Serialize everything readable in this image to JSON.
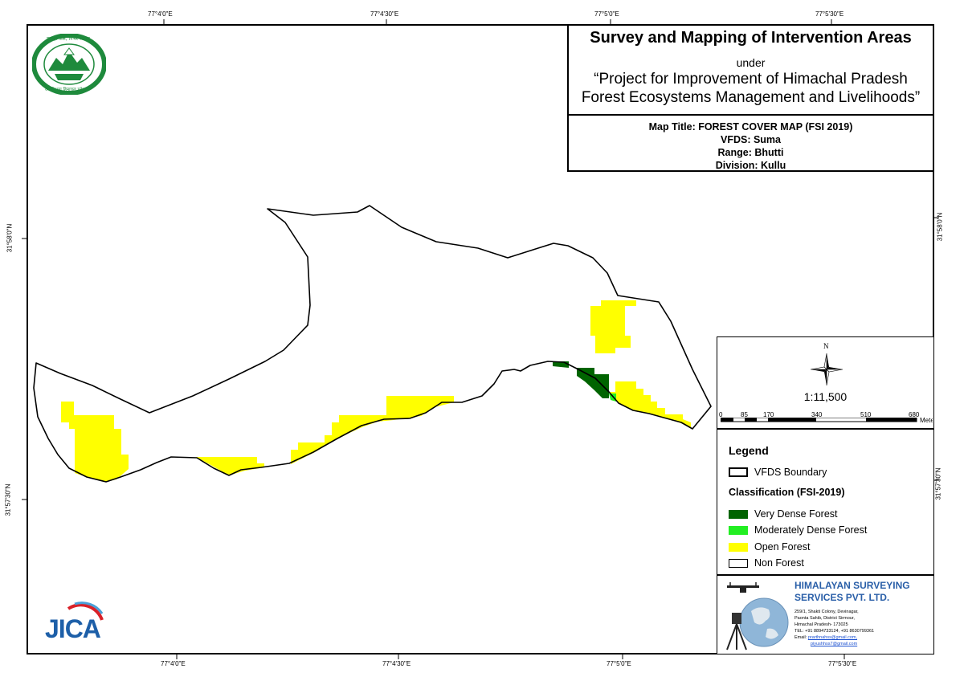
{
  "map_title_block": {
    "main_title": "Survey and Mapping of Intervention Areas",
    "under": "under",
    "project_line1": "“Project for Improvement of Himachal Pradesh",
    "project_line2": "Forest Ecosystems Management and Livelihoods”",
    "map_title": "Map Title: FOREST COVER MAP (FSI 2019)",
    "vfds": "VFDS: Suma",
    "range": "Range: Bhutti",
    "division": "Division: Kullu"
  },
  "coordinates": {
    "top": [
      "77°4'0\"E",
      "77°4'30\"E",
      "77°5'0\"E",
      "77°5'30\"E"
    ],
    "bottom": [
      "77°4'0\"E",
      "77°4'30\"E",
      "77°5'0\"E",
      "77°5'30\"E"
    ],
    "left": [
      "31°58'0\"N",
      "31°57'30\"N"
    ],
    "right": [
      "31°58'0\"N",
      "31°57'30\"N"
    ]
  },
  "north_arrow": {
    "label": "N",
    "icon": "north-arrow-icon"
  },
  "scale": {
    "ratio": "1:11,500",
    "ticks": [
      "0",
      "85",
      "170",
      "340",
      "510",
      "680"
    ],
    "unit": "Meters"
  },
  "legend": {
    "title": "Legend",
    "boundary_label": "VFDS Boundary",
    "classification_title": "Classification (FSI-2019)",
    "classes": [
      {
        "label": "Very Dense Forest",
        "color": "#006400"
      },
      {
        "label": "Moderately Dense Forest",
        "color": "#22ee22"
      },
      {
        "label": "Open Forest",
        "color": "#ffff00"
      },
      {
        "label": "Non Forest",
        "color": "#ffffff"
      }
    ]
  },
  "company": {
    "name_line1": "HIMALAYAN SURVEYING",
    "name_line2": "SERVICES PVT. LTD.",
    "address1": "259/1, Shakti Colony, Devinagar,",
    "address2": "Paonta Sahib, District Sirmour,",
    "address3": "Himachal Pradesh- 173025",
    "tel": "TEL: +91 8894733124, +91 8630799361",
    "email_label": "Email:",
    "email1": "prarthnahss@gmail.com,",
    "email2": "piyushhss7@gmail.com",
    "brand_color": "#2a5fa8"
  },
  "logos": {
    "forest_dept_text_top": "वन ही जल, निर्भर जनता",
    "forest_dept_text_bottom": "वन विभाग हिमाचल प्रदेश",
    "jica": "JICA"
  },
  "colors": {
    "very_dense": "#006400",
    "moderately_dense": "#22ee22",
    "open_forest": "#ffff00",
    "boundary": "#000000"
  }
}
